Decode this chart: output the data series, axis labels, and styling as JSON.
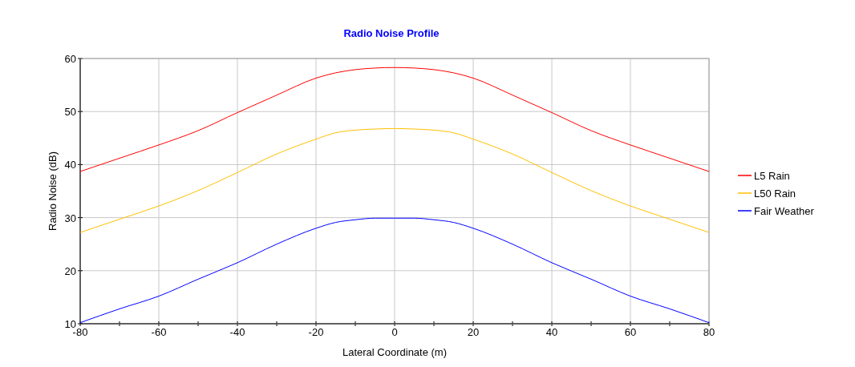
{
  "chart_data": {
    "type": "line",
    "title": "Radio Noise Profile",
    "xlabel": "Lateral Coordinate (m)",
    "ylabel": "Radio Noise (dB)",
    "x": [
      -80,
      -70,
      -60,
      -50,
      -40,
      -30,
      -20,
      -15,
      -10,
      -5,
      0,
      5,
      10,
      15,
      20,
      30,
      40,
      50,
      60,
      70,
      80
    ],
    "series": [
      {
        "name": "L5 Rain",
        "color": "#ff0000",
        "values": [
          38.7,
          41.2,
          43.7,
          46.4,
          49.8,
          53.1,
          56.3,
          57.3,
          57.9,
          58.2,
          58.3,
          58.2,
          57.9,
          57.3,
          56.3,
          53.1,
          49.8,
          46.4,
          43.7,
          41.2,
          38.7
        ]
      },
      {
        "name": "L50 Rain",
        "color": "#ffc000",
        "values": [
          27.2,
          29.7,
          32.2,
          35.1,
          38.5,
          42,
          44.8,
          46,
          46.5,
          46.7,
          46.8,
          46.7,
          46.5,
          46,
          44.8,
          42,
          38.5,
          35.1,
          32.2,
          29.7,
          27.2
        ]
      },
      {
        "name": "Fair Weather",
        "color": "#0000ff",
        "values": [
          10.2,
          12.8,
          15.2,
          18.4,
          21.5,
          25,
          28,
          29.1,
          29.6,
          29.9,
          29.9,
          29.9,
          29.6,
          29.1,
          28,
          25,
          21.5,
          18.4,
          15.2,
          12.8,
          10.2
        ]
      }
    ],
    "xlim": [
      -80,
      80
    ],
    "xticks": [
      -80,
      {
        "value": -70,
        "label": null
      },
      -60,
      {
        "value": -50,
        "label": null
      },
      -40,
      {
        "value": -30,
        "label": null
      },
      -20,
      {
        "value": -10,
        "label": null
      },
      0,
      {
        "value": 10,
        "label": null
      },
      20,
      {
        "value": 30,
        "label": null
      },
      40,
      {
        "value": 50,
        "label": null
      },
      60,
      {
        "value": 70,
        "label": null
      },
      80
    ],
    "ylim": [
      10,
      60
    ],
    "yticks": [
      10,
      20,
      30,
      40,
      50,
      60
    ],
    "grid": true,
    "legend": "right",
    "marker": "none",
    "line_style": "solid"
  }
}
